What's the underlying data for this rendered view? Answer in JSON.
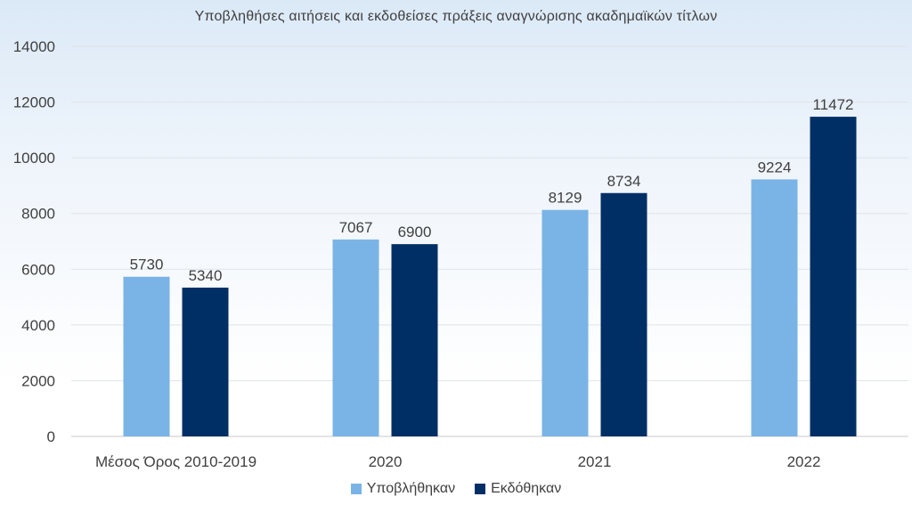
{
  "chart_data": {
    "type": "bar",
    "title": "Υποβληθήσες αιτήσεις και εκδοθείσες πράξεις αναγνώρισης ακαδημαϊκών τίτλων",
    "categories": [
      "Μέσος Όρος 2010-2019",
      "2020",
      "2021",
      "2022"
    ],
    "series": [
      {
        "name": "Υποβλήθηκαν",
        "values": [
          5730,
          7067,
          8129,
          9224
        ],
        "color": "#7ab4e6"
      },
      {
        "name": "Εκδόθηκαν",
        "values": [
          5340,
          6900,
          8734,
          11472
        ],
        "color": "#002f66"
      }
    ],
    "ylim": [
      0,
      14000
    ],
    "yticks": [
      0,
      2000,
      4000,
      6000,
      8000,
      10000,
      12000,
      14000
    ],
    "grid": true,
    "legend": "bottom",
    "data_labels": true
  }
}
